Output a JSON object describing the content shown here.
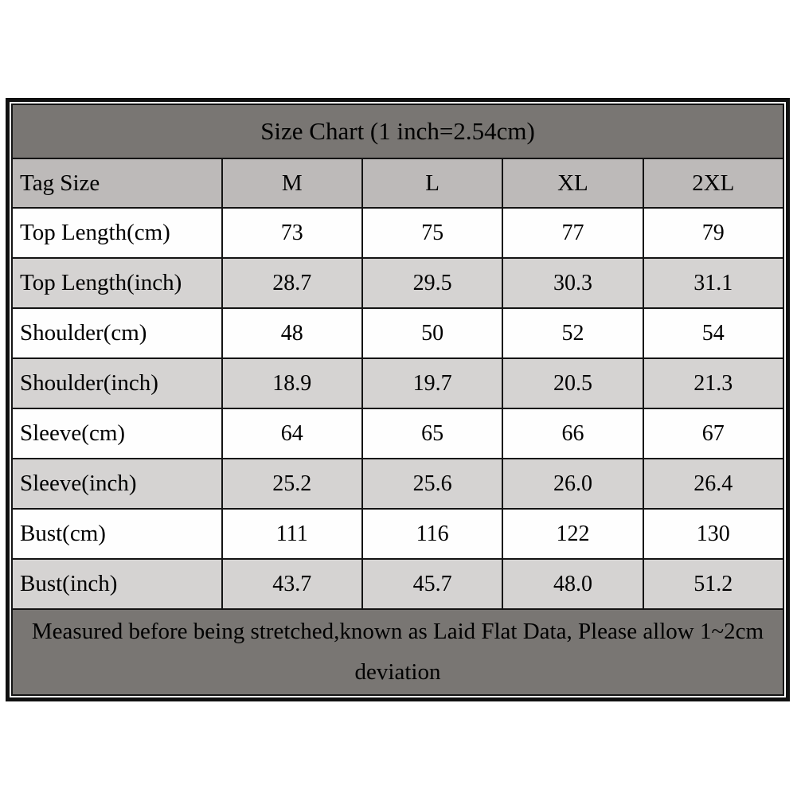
{
  "chart_data": {
    "type": "table",
    "title": "Size Chart (1 inch=2.54cm)",
    "columns": [
      "Tag Size",
      "M",
      "L",
      "XL",
      "2XL"
    ],
    "rows": [
      {
        "label": "Top Length(cm)",
        "values": [
          "73",
          "75",
          "77",
          "79"
        ],
        "shaded": false
      },
      {
        "label": "Top Length(inch)",
        "values": [
          "28.7",
          "29.5",
          "30.3",
          "31.1"
        ],
        "shaded": true
      },
      {
        "label": "Shoulder(cm)",
        "values": [
          "48",
          "50",
          "52",
          "54"
        ],
        "shaded": false
      },
      {
        "label": "Shoulder(inch)",
        "values": [
          "18.9",
          "19.7",
          "20.5",
          "21.3"
        ],
        "shaded": true
      },
      {
        "label": "Sleeve(cm)",
        "values": [
          "64",
          "65",
          "66",
          "67"
        ],
        "shaded": false
      },
      {
        "label": "Sleeve(inch)",
        "values": [
          "25.2",
          "25.6",
          "26.0",
          "26.4"
        ],
        "shaded": true
      },
      {
        "label": "Bust(cm)",
        "values": [
          "111",
          "116",
          "122",
          "130"
        ],
        "shaded": false
      },
      {
        "label": "Bust(inch)",
        "values": [
          "43.7",
          "45.7",
          "48.0",
          "51.2"
        ],
        "shaded": true
      }
    ],
    "note": "Measured before being stretched,known as Laid Flat Data, Please allow 1~2cm deviation",
    "layout": {
      "grid": "on",
      "title_position": "top",
      "note_position": "bottom"
    }
  },
  "colors": {
    "title_bar_bg": "#797673",
    "title_text": "#ffffff",
    "header_row_bg": "#bdbab9",
    "shaded_row_bg": "#d5d3d2",
    "plain_row_bg": "#fefefe",
    "border": "#141414",
    "cell_text": "#000000"
  }
}
